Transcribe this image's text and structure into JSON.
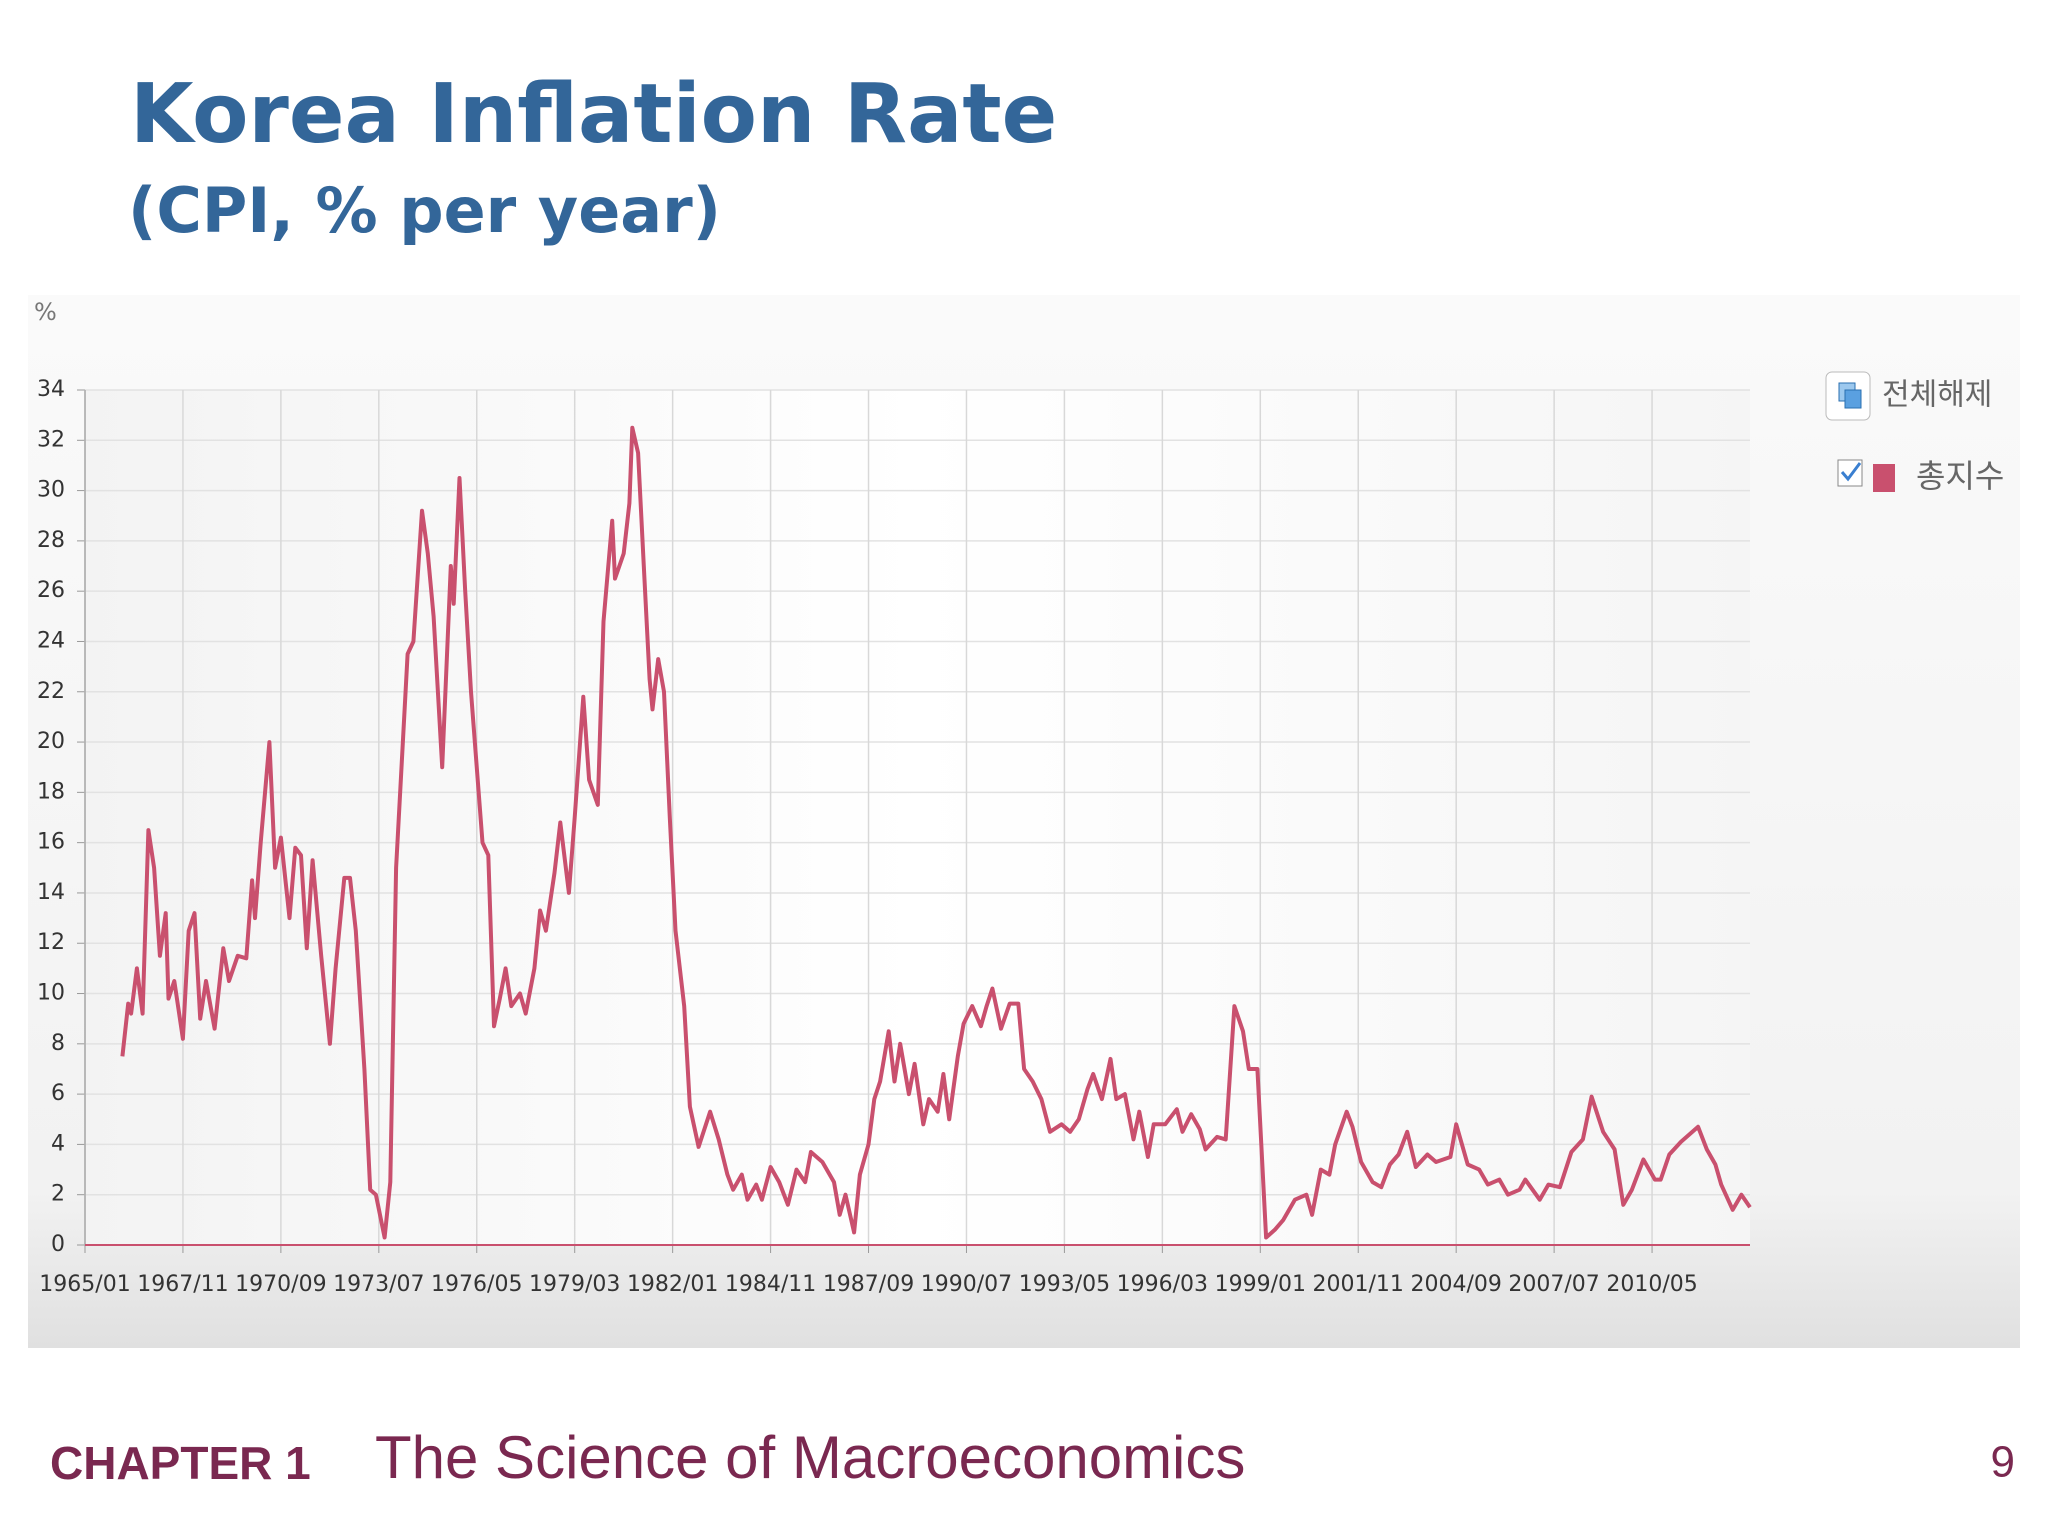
{
  "chart_data": {
    "type": "line",
    "title": "Korea Inflation Rate",
    "subtitle": "(CPI, % per year)",
    "ylabel": "%",
    "legend_toggle_label": "전체해제",
    "legend": "right",
    "grid": true,
    "xlim": [
      "1965/01",
      "2013/03"
    ],
    "xticks": [
      "1965/01",
      "1967/11",
      "1970/09",
      "1973/07",
      "1976/05",
      "1979/03",
      "1982/01",
      "1984/11",
      "1987/09",
      "1990/07",
      "1993/05",
      "1996/03",
      "1999/01",
      "2001/11",
      "2004/09",
      "2007/07",
      "2010/05"
    ],
    "ylim": [
      0,
      34
    ],
    "yticks": [
      0,
      2,
      4,
      6,
      8,
      10,
      12,
      14,
      16,
      18,
      20,
      22,
      24,
      26,
      28,
      30,
      32,
      34
    ],
    "x": [
      "1966/02",
      "1966/04",
      "1966/05",
      "1966/07",
      "1966/09",
      "1966/11",
      "1967/01",
      "1967/03",
      "1967/05",
      "1967/06",
      "1967/08",
      "1967/11",
      "1968/01",
      "1968/03",
      "1968/05",
      "1968/07",
      "1968/10",
      "1969/01",
      "1969/03",
      "1969/06",
      "1969/09",
      "1969/11",
      "1969/12",
      "1970/02",
      "1970/05",
      "1970/07",
      "1970/09",
      "1970/12",
      "1971/02",
      "1971/04",
      "1971/06",
      "1971/08",
      "1971/11",
      "1972/02",
      "1972/04",
      "1972/07",
      "1972/09",
      "1972/11",
      "1973/02",
      "1973/04",
      "1973/06",
      "1973/09",
      "1973/11",
      "1974/01",
      "1974/05",
      "1974/07",
      "1974/10",
      "1974/12",
      "1975/02",
      "1975/05",
      "1975/08",
      "1975/09",
      "1975/11",
      "1976/01",
      "1976/03",
      "1976/07",
      "1976/09",
      "1976/11",
      "1977/01",
      "1977/03",
      "1977/05",
      "1977/08",
      "1977/10",
      "1978/01",
      "1978/03",
      "1978/05",
      "1978/08",
      "1978/10",
      "1979/01",
      "1979/03",
      "1979/06",
      "1979/08",
      "1979/11",
      "1980/01",
      "1980/04",
      "1980/05",
      "1980/08",
      "1980/10",
      "1980/11",
      "1981/01",
      "1981/03",
      "1981/05",
      "1981/06",
      "1981/08",
      "1981/10",
      "1981/12",
      "1982/02",
      "1982/05",
      "1982/07",
      "1982/10",
      "1983/02",
      "1983/05",
      "1983/08",
      "1983/10",
      "1984/01",
      "1984/03",
      "1984/06",
      "1984/08",
      "1984/11",
      "1985/02",
      "1985/05",
      "1985/08",
      "1985/11",
      "1986/01",
      "1986/05",
      "1986/09",
      "1986/11",
      "1987/01",
      "1987/04",
      "1987/06",
      "1987/09",
      "1987/11",
      "1988/01",
      "1988/04",
      "1988/06",
      "1988/08",
      "1988/11",
      "1989/01",
      "1989/04",
      "1989/06",
      "1989/09",
      "1989/11",
      "1990/01",
      "1990/04",
      "1990/06",
      "1990/09",
      "1990/12",
      "1991/02",
      "1991/04",
      "1991/07",
      "1991/10",
      "1992/01",
      "1992/03",
      "1992/06",
      "1992/09",
      "1992/12",
      "1993/04",
      "1993/07",
      "1993/10",
      "1994/01",
      "1994/03",
      "1994/06",
      "1994/09",
      "1994/11",
      "1995/02",
      "1995/05",
      "1995/07",
      "1995/10",
      "1995/12",
      "1996/04",
      "1996/08",
      "1996/10",
      "1997/01",
      "1997/04",
      "1997/06",
      "1997/10",
      "1998/01",
      "1998/04",
      "1998/07",
      "1998/09",
      "1998/12",
      "1999/03",
      "1999/06",
      "1999/09",
      "2000/01",
      "2000/05",
      "2000/07",
      "2000/10",
      "2001/01",
      "2001/03",
      "2001/07",
      "2001/09",
      "2001/12",
      "2002/04",
      "2002/07",
      "2002/10",
      "2003/01",
      "2003/04",
      "2003/07",
      "2003/11",
      "2004/02",
      "2004/07",
      "2004/09",
      "2005/01",
      "2005/05",
      "2005/08",
      "2005/12",
      "2006/03",
      "2006/07",
      "2006/09",
      "2007/02",
      "2007/05",
      "2007/09",
      "2008/01",
      "2008/05",
      "2008/08",
      "2008/12",
      "2009/04",
      "2009/07",
      "2009/10",
      "2010/02",
      "2010/06",
      "2010/08",
      "2010/11",
      "2011/03",
      "2011/05",
      "2011/09",
      "2011/12",
      "2012/03",
      "2012/05",
      "2012/09",
      "2012/12",
      "2013/03"
    ],
    "series": [
      {
        "name": "총지수",
        "color": "#c9506e",
        "values": [
          7.5,
          9.6,
          9.2,
          11,
          9.2,
          16.5,
          15,
          11.5,
          13.2,
          9.8,
          10.5,
          8.2,
          12.5,
          13.2,
          9,
          10.5,
          8.6,
          11.8,
          10.5,
          11.5,
          11.4,
          14.5,
          13,
          16,
          20,
          15,
          16.2,
          13,
          15.8,
          15.5,
          11.8,
          15.3,
          11.5,
          8,
          11,
          14.6,
          14.6,
          12.5,
          7,
          2.2,
          2,
          0.3,
          2.5,
          15,
          23.5,
          24,
          29.2,
          27.5,
          25,
          19,
          27,
          25.5,
          30.5,
          26,
          22,
          16,
          15.5,
          8.7,
          9.8,
          11,
          9.5,
          10,
          9.2,
          11,
          13.3,
          12.5,
          14.8,
          16.8,
          14,
          17,
          21.8,
          18.5,
          17.5,
          24.8,
          28.8,
          26.5,
          27.5,
          29.5,
          32.5,
          31.5,
          27,
          22.5,
          21.3,
          23.3,
          22,
          17,
          12.5,
          9.5,
          5.5,
          3.9,
          5.3,
          4.2,
          2.8,
          2.2,
          2.8,
          1.8,
          2.4,
          1.8,
          3.1,
          2.5,
          1.6,
          3,
          2.5,
          3.7,
          3.3,
          2.5,
          1.2,
          2,
          0.5,
          2.8,
          4,
          5.8,
          6.5,
          8.5,
          6.5,
          8,
          6,
          7.2,
          4.8,
          5.8,
          5.3,
          6.8,
          5,
          7.5,
          8.8,
          9.5,
          8.7,
          9.5,
          10.2,
          8.6,
          9.6,
          9.6,
          7,
          6.5,
          5.8,
          4.5,
          4.8,
          4.5,
          5,
          6.2,
          6.8,
          5.8,
          7.4,
          5.8,
          6,
          4.2,
          5.3,
          3.5,
          4.8,
          4.8,
          5.4,
          4.5,
          5.2,
          4.6,
          3.8,
          4.3,
          4.2,
          9.5,
          8.5,
          7,
          7,
          0.3,
          0.6,
          1,
          1.8,
          2,
          1.2,
          3,
          2.8,
          4,
          5.3,
          4.7,
          3.3,
          2.5,
          2.3,
          3.2,
          3.6,
          4.5,
          3.1,
          3.6,
          3.3,
          3.5,
          4.8,
          3.2,
          3,
          2.4,
          2.6,
          2,
          2.2,
          2.6,
          1.8,
          2.4,
          2.3,
          3.7,
          4.2,
          5.9,
          4.5,
          3.8,
          1.6,
          2.2,
          3.4,
          2.6,
          2.6,
          3.6,
          4.1,
          4.3,
          4.7,
          3.8,
          3.2,
          2.4,
          1.4,
          2,
          1.5
        ]
      }
    ]
  },
  "footer": {
    "chapter": "CHAPTER 1",
    "title": "The Science of Macroeconomics",
    "page": 9
  }
}
